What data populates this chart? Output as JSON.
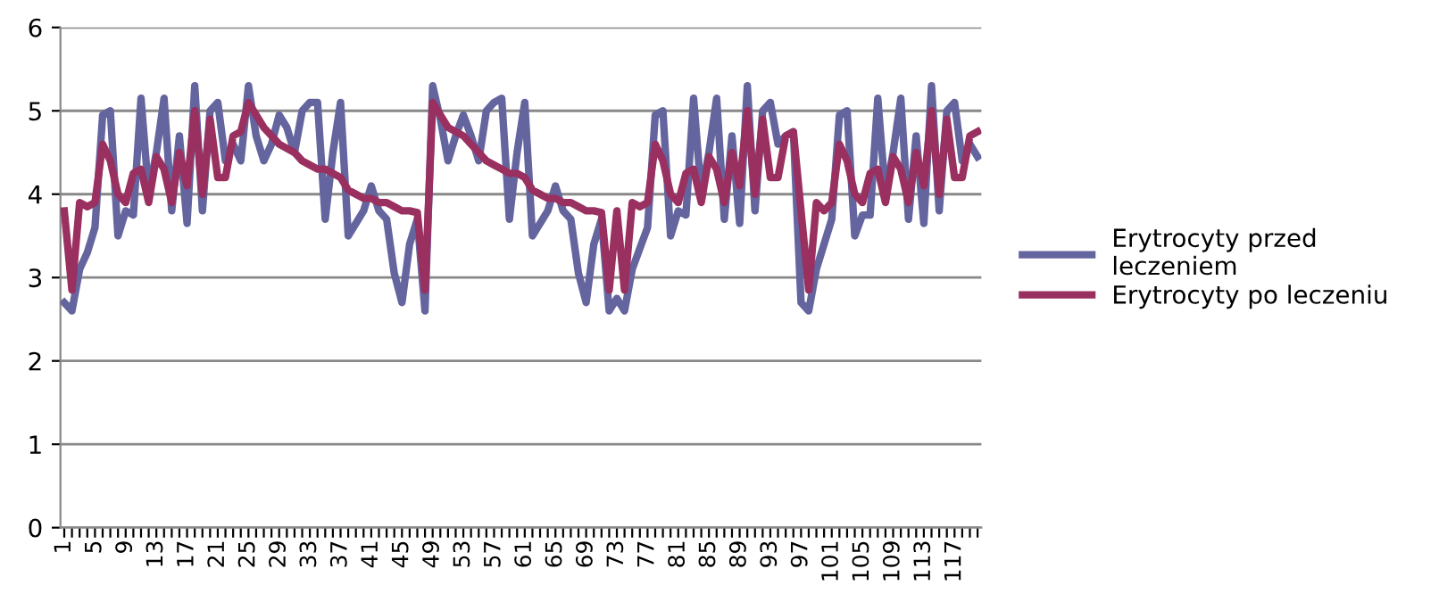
{
  "chart_data": {
    "type": "line",
    "categories": [
      "1",
      null,
      null,
      null,
      "5",
      null,
      null,
      null,
      "9",
      null,
      null,
      null,
      "13",
      null,
      null,
      null,
      "17",
      null,
      null,
      null,
      "21",
      null,
      null,
      null,
      "25",
      null,
      null,
      null,
      "29",
      null,
      null,
      null,
      "33",
      null,
      null,
      null,
      "37",
      null,
      null,
      null,
      "41",
      null,
      null,
      null,
      "45",
      null,
      null,
      null,
      "49",
      null,
      null,
      null,
      "53",
      null,
      null,
      null,
      "57",
      null,
      null,
      null,
      "61",
      null,
      null,
      null,
      "65",
      null,
      null,
      null,
      "69",
      null,
      null,
      null,
      "73",
      null,
      null,
      null,
      "77",
      null,
      null,
      null,
      "81",
      null,
      null,
      null,
      "85",
      null,
      null,
      null,
      "89",
      null,
      null,
      null,
      "93",
      null,
      null,
      null,
      "97",
      null,
      null,
      null,
      "101",
      null,
      null,
      null,
      "105",
      null,
      null,
      null,
      "109",
      null,
      null,
      null,
      "113",
      null,
      null,
      null,
      "117",
      null,
      null,
      null
    ],
    "series": [
      {
        "name": "Erytrocyty przed leczeniem",
        "color": "#64649e",
        "values": [
          2.7,
          2.6,
          3.1,
          3.3,
          3.6,
          4.95,
          5.0,
          3.5,
          3.8,
          3.75,
          5.15,
          4.0,
          4.5,
          5.15,
          3.8,
          4.7,
          3.65,
          5.3,
          3.8,
          5.0,
          5.1,
          4.4,
          4.6,
          4.4,
          5.3,
          4.7,
          4.4,
          4.6,
          4.95,
          4.8,
          4.5,
          5.0,
          5.1,
          5.1,
          3.7,
          4.5,
          5.1,
          3.5,
          3.65,
          3.8,
          4.1,
          3.8,
          3.7,
          3.05,
          2.7,
          3.4,
          3.7,
          2.6,
          5.3,
          4.9,
          4.4,
          4.7,
          4.95,
          4.7,
          4.4,
          5.0,
          5.1,
          5.15,
          3.7,
          4.5,
          5.1,
          3.5,
          3.65,
          3.8,
          4.1,
          3.8,
          3.7,
          3.05,
          2.7,
          3.4,
          3.7,
          2.6,
          2.75,
          2.6,
          3.1,
          3.35,
          3.6,
          4.95,
          5.0,
          3.5,
          3.8,
          3.75,
          5.15,
          4.0,
          4.5,
          5.15,
          3.7,
          4.7,
          3.65,
          5.3,
          3.8,
          5.0,
          5.1,
          4.6,
          4.7,
          4.75,
          2.7,
          2.6,
          3.1,
          3.4,
          3.7,
          4.95,
          5.0,
          3.5,
          3.75,
          3.75,
          5.15,
          4.0,
          4.5,
          5.15,
          3.7,
          4.7,
          3.65,
          5.3,
          3.8,
          5.0,
          5.1,
          4.4,
          4.6,
          4.45
        ]
      },
      {
        "name": "Erytrocyty po leczeniu",
        "color": "#993060",
        "values": [
          3.8,
          2.85,
          3.9,
          3.85,
          3.9,
          4.6,
          4.4,
          4.0,
          3.9,
          4.25,
          4.3,
          3.9,
          4.45,
          4.3,
          3.9,
          4.5,
          4.1,
          5.0,
          4.0,
          4.9,
          4.2,
          4.2,
          4.7,
          4.75,
          5.1,
          4.95,
          4.8,
          4.7,
          4.6,
          4.55,
          4.5,
          4.4,
          4.35,
          4.3,
          4.3,
          4.25,
          4.2,
          4.05,
          4.0,
          3.95,
          3.95,
          3.9,
          3.9,
          3.85,
          3.8,
          3.8,
          3.78,
          2.85,
          5.1,
          4.95,
          4.8,
          4.75,
          4.7,
          4.6,
          4.5,
          4.4,
          4.35,
          4.3,
          4.25,
          4.25,
          4.2,
          4.05,
          4.0,
          3.95,
          3.95,
          3.9,
          3.9,
          3.85,
          3.8,
          3.8,
          3.78,
          2.85,
          3.8,
          2.85,
          3.9,
          3.85,
          3.9,
          4.6,
          4.4,
          4.0,
          3.9,
          4.25,
          4.3,
          3.9,
          4.45,
          4.3,
          3.9,
          4.5,
          4.1,
          5.0,
          4.0,
          4.9,
          4.2,
          4.2,
          4.7,
          4.75,
          3.8,
          2.85,
          3.9,
          3.8,
          3.9,
          4.6,
          4.4,
          4.0,
          3.9,
          4.25,
          4.3,
          3.9,
          4.45,
          4.3,
          3.9,
          4.5,
          4.1,
          5.0,
          4.0,
          4.9,
          4.2,
          4.2,
          4.7,
          4.75
        ]
      }
    ],
    "ylim": [
      0,
      6
    ],
    "yticks": [
      0,
      1,
      2,
      3,
      4,
      5,
      6
    ],
    "grid": "y",
    "legend": "right",
    "marker": "none",
    "line_style": "solid"
  }
}
